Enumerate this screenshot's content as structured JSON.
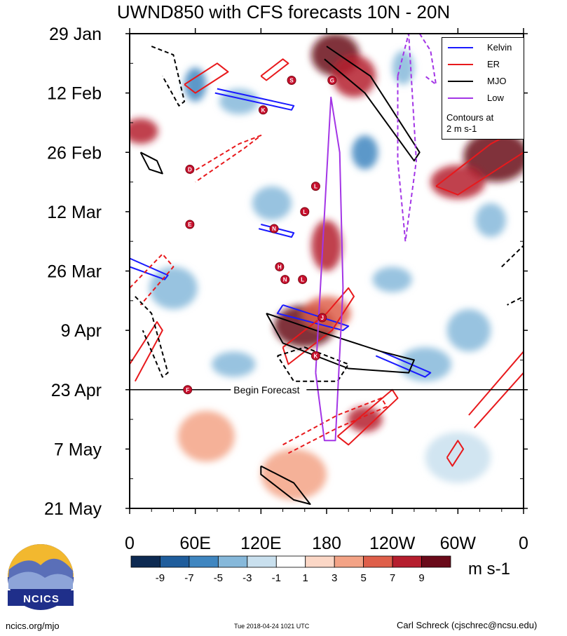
{
  "chart_data": {
    "type": "heatmap",
    "title": "UWND850 with CFS forecasts  10N - 20N",
    "y_tick_labels": [
      "29 Jan",
      "12 Feb",
      "26 Feb",
      "12 Mar",
      "26 Mar",
      "9 Apr",
      "23 Apr",
      "7 May",
      "21 May"
    ],
    "y_range_days": [
      0,
      112
    ],
    "x_tick_labels": [
      "0",
      "60E",
      "120E",
      "180",
      "120W",
      "60W",
      "0"
    ],
    "x_range_deg": [
      0,
      360
    ],
    "forecast_label": "Begin Forecast",
    "forecast_day": 84,
    "legend": [
      {
        "name": "Kelvin",
        "color": "#1a1aff"
      },
      {
        "name": "ER",
        "color": "#e8191c"
      },
      {
        "name": "MJO",
        "color": "#000000"
      },
      {
        "name": "Low",
        "color": "#a335e6"
      }
    ],
    "contour_note_line1": "Contours at",
    "contour_note_line2": "2 m s-1",
    "colorbar": {
      "levels": [
        "-9",
        "-7",
        "-5",
        "-3",
        "-1",
        "1",
        "3",
        "5",
        "7",
        "9"
      ],
      "colors": [
        "#0d2a52",
        "#1f5d9c",
        "#3f86c0",
        "#86b8da",
        "#c9e0ee",
        "#ffffff",
        "#fbd7c6",
        "#f3a386",
        "#de5f4a",
        "#b51e2e",
        "#6a0a1a"
      ],
      "units": "m s-1"
    },
    "storms": [
      {
        "letter": "S",
        "lon": 148,
        "day": 11
      },
      {
        "letter": "G",
        "lon": 185,
        "day": 11
      },
      {
        "letter": "K",
        "lon": 122,
        "day": 18
      },
      {
        "letter": "D",
        "lon": 55,
        "day": 32
      },
      {
        "letter": "L",
        "lon": 170,
        "day": 36
      },
      {
        "letter": "L",
        "lon": 160,
        "day": 42
      },
      {
        "letter": "E",
        "lon": 55,
        "day": 45
      },
      {
        "letter": "N",
        "lon": 132,
        "day": 46
      },
      {
        "letter": "H",
        "lon": 137,
        "day": 55
      },
      {
        "letter": "N",
        "lon": 142,
        "day": 58
      },
      {
        "letter": "L",
        "lon": 158,
        "day": 58
      },
      {
        "letter": "J",
        "lon": 176,
        "day": 67
      },
      {
        "letter": "K",
        "lon": 170,
        "day": 76
      },
      {
        "letter": "F",
        "lon": 53,
        "day": 84
      }
    ],
    "field_blobs": [
      {
        "lon": 188,
        "day": 5,
        "v": 9,
        "rx": 22,
        "ry": 5
      },
      {
        "lon": 205,
        "day": 10,
        "v": 7,
        "rx": 20,
        "ry": 5
      },
      {
        "lon": 10,
        "day": 23,
        "v": 8,
        "rx": 16,
        "ry": 3
      },
      {
        "lon": 335,
        "day": 29,
        "v": 9,
        "rx": 30,
        "ry": 6
      },
      {
        "lon": 300,
        "day": 35,
        "v": 7,
        "rx": 25,
        "ry": 4
      },
      {
        "lon": 180,
        "day": 50,
        "v": 8,
        "rx": 14,
        "ry": 6
      },
      {
        "lon": 160,
        "day": 69,
        "v": 9,
        "rx": 28,
        "ry": 5
      },
      {
        "lon": 180,
        "day": 66,
        "v": 6,
        "rx": 22,
        "ry": 4
      },
      {
        "lon": 215,
        "day": 91,
        "v": 8,
        "rx": 16,
        "ry": 3
      },
      {
        "lon": 60,
        "day": 12,
        "v": -6,
        "rx": 10,
        "ry": 4
      },
      {
        "lon": 100,
        "day": 16,
        "v": -5,
        "rx": 18,
        "ry": 3
      },
      {
        "lon": 215,
        "day": 28,
        "v": -6,
        "rx": 12,
        "ry": 4
      },
      {
        "lon": 250,
        "day": 8,
        "v": -5,
        "rx": 10,
        "ry": 4
      },
      {
        "lon": 240,
        "day": 58,
        "v": -5,
        "rx": 18,
        "ry": 3
      },
      {
        "lon": 310,
        "day": 70,
        "v": -5,
        "rx": 20,
        "ry": 5
      },
      {
        "lon": 270,
        "day": 78,
        "v": -4,
        "rx": 24,
        "ry": 4
      },
      {
        "lon": 95,
        "day": 78,
        "v": -5,
        "rx": 20,
        "ry": 3
      },
      {
        "lon": 40,
        "day": 60,
        "v": -4,
        "rx": 22,
        "ry": 5
      },
      {
        "lon": 330,
        "day": 44,
        "v": -5,
        "rx": 14,
        "ry": 4
      },
      {
        "lon": 130,
        "day": 40,
        "v": -4,
        "rx": 18,
        "ry": 4
      },
      {
        "lon": 70,
        "day": 95,
        "v": 3,
        "rx": 26,
        "ry": 6
      },
      {
        "lon": 150,
        "day": 104,
        "v": 3,
        "rx": 30,
        "ry": 6
      },
      {
        "lon": 300,
        "day": 100,
        "v": -2,
        "rx": 30,
        "ry": 6
      }
    ],
    "contours": [
      {
        "type": "Kelvin",
        "dashed": false,
        "pts": [
          [
            140,
            64
          ],
          [
            200,
            69
          ],
          [
            195,
            70
          ],
          [
            135,
            66
          ],
          [
            140,
            64
          ]
        ]
      },
      {
        "type": "Kelvin",
        "dashed": false,
        "pts": [
          [
            230,
            75
          ],
          [
            275,
            80
          ],
          [
            270,
            81
          ],
          [
            225,
            76
          ]
        ]
      },
      {
        "type": "Kelvin",
        "dashed": false,
        "pts": [
          [
            0,
            53
          ],
          [
            35,
            57
          ],
          [
            32,
            58
          ],
          [
            0,
            55
          ]
        ]
      },
      {
        "type": "Kelvin",
        "dashed": false,
        "pts": [
          [
            80,
            13
          ],
          [
            150,
            17
          ],
          [
            148,
            18
          ],
          [
            78,
            14
          ]
        ]
      },
      {
        "type": "Kelvin",
        "dashed": false,
        "pts": [
          [
            120,
            45
          ],
          [
            150,
            47
          ],
          [
            148,
            48
          ],
          [
            118,
            46
          ]
        ]
      },
      {
        "type": "ER",
        "dashed": false,
        "pts": [
          [
            50,
            12
          ],
          [
            80,
            7
          ],
          [
            90,
            9
          ],
          [
            60,
            14
          ],
          [
            50,
            12
          ]
        ]
      },
      {
        "type": "ER",
        "dashed": false,
        "pts": [
          [
            120,
            10
          ],
          [
            140,
            6
          ],
          [
            145,
            7
          ],
          [
            125,
            11
          ],
          [
            120,
            10
          ]
        ]
      },
      {
        "type": "ER",
        "dashed": false,
        "pts": [
          [
            280,
            36
          ],
          [
            330,
            26
          ],
          [
            360,
            22
          ],
          [
            360,
            28
          ],
          [
            300,
            38
          ],
          [
            280,
            36
          ]
        ]
      },
      {
        "type": "ER",
        "dashed": false,
        "pts": [
          [
            140,
            74
          ],
          [
            180,
            66
          ],
          [
            200,
            60
          ],
          [
            205,
            62
          ],
          [
            185,
            70
          ],
          [
            145,
            78
          ],
          [
            140,
            74
          ]
        ]
      },
      {
        "type": "ER",
        "dashed": false,
        "pts": [
          [
            190,
            95
          ],
          [
            240,
            84
          ],
          [
            245,
            86
          ],
          [
            200,
            97
          ],
          [
            190,
            95
          ]
        ]
      },
      {
        "type": "ER",
        "dashed": true,
        "pts": [
          [
            140,
            97
          ],
          [
            190,
            90
          ],
          [
            230,
            86
          ],
          [
            235,
            88
          ],
          [
            190,
            93
          ],
          [
            145,
            99
          ]
        ]
      },
      {
        "type": "ER",
        "dashed": true,
        "pts": [
          [
            0,
            60
          ],
          [
            30,
            52
          ],
          [
            40,
            55
          ],
          [
            10,
            64
          ]
        ]
      },
      {
        "type": "ER",
        "dashed": true,
        "pts": [
          [
            55,
            33
          ],
          [
            100,
            26
          ],
          [
            120,
            24
          ],
          [
            105,
            27
          ],
          [
            60,
            35
          ]
        ]
      },
      {
        "type": "ER",
        "dashed": false,
        "pts": [
          [
            0,
            78
          ],
          [
            25,
            68
          ],
          [
            30,
            70
          ],
          [
            5,
            82
          ]
        ]
      },
      {
        "type": "ER",
        "dashed": false,
        "pts": [
          [
            310,
            90
          ],
          [
            360,
            75
          ],
          [
            360,
            80
          ],
          [
            315,
            93
          ]
        ]
      },
      {
        "type": "ER",
        "dashed": false,
        "pts": [
          [
            290,
            100
          ],
          [
            300,
            96
          ],
          [
            305,
            98
          ],
          [
            295,
            102
          ],
          [
            290,
            100
          ]
        ]
      },
      {
        "type": "MJO",
        "dashed": false,
        "pts": [
          [
            180,
            3
          ],
          [
            220,
            10
          ],
          [
            265,
            28
          ],
          [
            260,
            30
          ],
          [
            215,
            14
          ],
          [
            178,
            6
          ]
        ]
      },
      {
        "type": "MJO",
        "dashed": false,
        "pts": [
          [
            125,
            66
          ],
          [
            170,
            70
          ],
          [
            230,
            75
          ],
          [
            260,
            77
          ],
          [
            255,
            80
          ],
          [
            200,
            79
          ],
          [
            140,
            73
          ],
          [
            125,
            66
          ]
        ]
      },
      {
        "type": "MJO",
        "dashed": true,
        "pts": [
          [
            135,
            76
          ],
          [
            160,
            74
          ],
          [
            200,
            78
          ],
          [
            190,
            82
          ],
          [
            150,
            82
          ],
          [
            135,
            76
          ]
        ]
      },
      {
        "type": "MJO",
        "dashed": true,
        "pts": [
          [
            20,
            3
          ],
          [
            40,
            5
          ],
          [
            50,
            16
          ],
          [
            45,
            17
          ],
          [
            30,
            10
          ]
        ]
      },
      {
        "type": "MJO",
        "dashed": false,
        "pts": [
          [
            10,
            28
          ],
          [
            25,
            30
          ],
          [
            30,
            33
          ],
          [
            18,
            32
          ],
          [
            10,
            28
          ]
        ]
      },
      {
        "type": "MJO",
        "dashed": true,
        "pts": [
          [
            5,
            62
          ],
          [
            20,
            66
          ],
          [
            35,
            80
          ],
          [
            30,
            81
          ],
          [
            12,
            70
          ]
        ]
      },
      {
        "type": "MJO",
        "dashed": false,
        "pts": [
          [
            120,
            102
          ],
          [
            150,
            106
          ],
          [
            165,
            111
          ],
          [
            150,
            110
          ],
          [
            120,
            104
          ],
          [
            120,
            102
          ]
        ]
      },
      {
        "type": "MJO",
        "dashed": true,
        "pts": [
          [
            340,
            55
          ],
          [
            360,
            50
          ],
          [
            360,
            62
          ],
          [
            345,
            64
          ]
        ]
      },
      {
        "type": "Low",
        "dashed": false,
        "pts": [
          [
            170,
            80
          ],
          [
            184,
            15
          ],
          [
            192,
            28
          ],
          [
            195,
            60
          ],
          [
            188,
            96
          ],
          [
            178,
            96
          ],
          [
            170,
            80
          ]
        ]
      },
      {
        "type": "Low",
        "dashed": true,
        "pts": [
          [
            245,
            10
          ],
          [
            255,
            0
          ],
          [
            262,
            30
          ],
          [
            252,
            49
          ],
          [
            245,
            30
          ],
          [
            245,
            10
          ]
        ]
      },
      {
        "type": "Low",
        "dashed": true,
        "pts": [
          [
            265,
            0
          ],
          [
            275,
            4
          ],
          [
            280,
            12
          ],
          [
            270,
            10
          ]
        ]
      }
    ]
  },
  "footer": {
    "left": "ncics.org/mjo",
    "center": "Tue 2018-04-24 1021 UTC",
    "right": "Carl Schreck (cjschrec@ncsu.edu)"
  },
  "logo": {
    "text": "NCICS"
  }
}
